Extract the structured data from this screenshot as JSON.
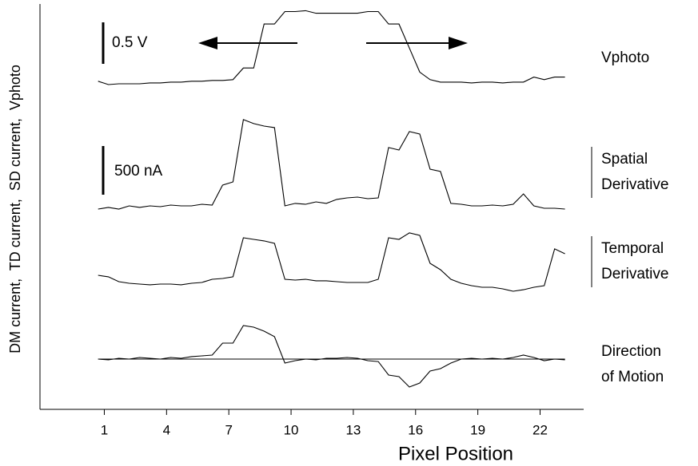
{
  "chart_data": {
    "type": "line",
    "x_label": "Pixel Position",
    "y_label": "DM current,  TD current,  SD current,  Vphoto",
    "xlim": [
      -2.1,
      24.1
    ],
    "xticks": [
      1,
      4,
      7,
      10,
      13,
      16,
      19,
      22
    ],
    "x": [
      0.7,
      1.2,
      1.7,
      2.2,
      2.7,
      3.2,
      3.7,
      4.2,
      4.7,
      5.2,
      5.7,
      6.2,
      6.7,
      7.2,
      7.7,
      8.2,
      8.7,
      9.2,
      9.7,
      10.2,
      10.7,
      11.2,
      11.7,
      12.2,
      12.7,
      13.2,
      13.7,
      14.2,
      14.7,
      15.2,
      15.7,
      16.2,
      16.7,
      17.2,
      17.7,
      18.2,
      18.7,
      19.2,
      19.7,
      20.2,
      20.7,
      21.2,
      21.7,
      22.2,
      22.7,
      23.2
    ],
    "series": [
      {
        "name": [
          "Vphoto"
        ],
        "color": "#000000",
        "bracket": false,
        "values": [
          0.04,
          0,
          0.01,
          0.01,
          0.01,
          0.02,
          0.02,
          0.03,
          0.03,
          0.04,
          0.04,
          0.05,
          0.05,
          0.06,
          0.2,
          0.2,
          0.73,
          0.73,
          0.88,
          0.88,
          0.89,
          0.86,
          0.86,
          0.86,
          0.86,
          0.86,
          0.88,
          0.88,
          0.73,
          0.73,
          0.44,
          0.15,
          0.06,
          0.03,
          0.03,
          0.03,
          0.02,
          0.03,
          0.03,
          0.02,
          0.03,
          0.03,
          0.09,
          0.06,
          0.09,
          0.09
        ]
      },
      {
        "name": [
          "Spatial",
          "Derivative"
        ],
        "color": "#000000",
        "bracket": true,
        "values": [
          8,
          25,
          8,
          41,
          25,
          41,
          33,
          49,
          41,
          41,
          57,
          49,
          254,
          287,
          927,
          886,
          861,
          845,
          41,
          66,
          57,
          82,
          66,
          107,
          123,
          131,
          115,
          123,
          640,
          615,
          804,
          779,
          418,
          394,
          66,
          57,
          41,
          41,
          49,
          41,
          57,
          164,
          41,
          16,
          16,
          8
        ]
      },
      {
        "name": [
          "Temporal",
          "Derivative"
        ],
        "color": "#000000",
        "bracket": true,
        "values": [
          123,
          107,
          57,
          41,
          33,
          25,
          33,
          33,
          25,
          41,
          49,
          82,
          90,
          107,
          508,
          492,
          476,
          451,
          82,
          74,
          82,
          66,
          66,
          57,
          49,
          49,
          49,
          82,
          508,
          492,
          558,
          533,
          246,
          180,
          82,
          41,
          16,
          0,
          0,
          -16,
          -41,
          -25,
          0,
          16,
          394,
          344
        ]
      },
      {
        "name": [
          "Direction",
          "of Motion"
        ],
        "color": "#000000",
        "bracket": false,
        "zero_line": true,
        "values": [
          0,
          -8,
          8,
          0,
          16,
          8,
          0,
          16,
          8,
          25,
          33,
          41,
          164,
          164,
          344,
          328,
          287,
          230,
          -41,
          -16,
          0,
          -8,
          8,
          8,
          16,
          8,
          -16,
          -25,
          -164,
          -180,
          -287,
          -246,
          -123,
          -98,
          -41,
          0,
          8,
          0,
          8,
          0,
          16,
          41,
          16,
          -16,
          0,
          -8
        ]
      }
    ],
    "scale_bars": [
      {
        "label": "0.5 V",
        "value": 0.5
      },
      {
        "label": "500 nA",
        "value": 500
      }
    ]
  }
}
